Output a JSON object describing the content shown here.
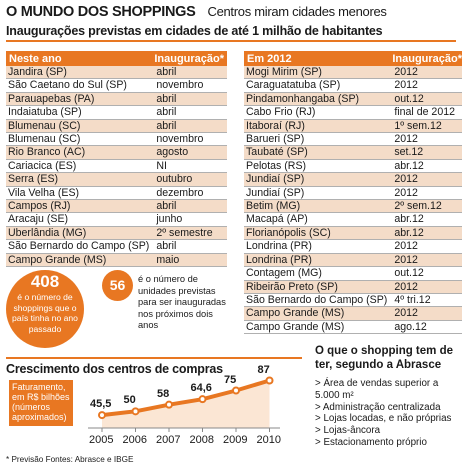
{
  "header": {
    "title": "O MUNDO DOS SHOPPINGS",
    "subtitle": "Centros miram cidades menores"
  },
  "section_title": "Inaugurações previstas em cidades de até 1 milhão de habitantes",
  "left_table": {
    "headers": [
      "Neste ano",
      "Inauguração*"
    ],
    "rows": [
      [
        "Jandira (SP)",
        "abril"
      ],
      [
        "São Caetano do Sul (SP)",
        "novembro"
      ],
      [
        "Parauapebas (PA)",
        "abril"
      ],
      [
        "Indaiatuba (SP)",
        "abril"
      ],
      [
        "Blumenau (SC)",
        "abril"
      ],
      [
        "Blumenau (SC)",
        "novembro"
      ],
      [
        "Rio Branco (AC)",
        "agosto"
      ],
      [
        "Cariacica (ES)",
        "NI"
      ],
      [
        "Serra (ES)",
        "outubro"
      ],
      [
        "Vila Velha (ES)",
        "dezembro"
      ],
      [
        "Campos (RJ)",
        "abril"
      ],
      [
        "Aracaju (SE)",
        "junho"
      ],
      [
        "Uberlândia (MG)",
        "2º semestre"
      ],
      [
        "São Bernardo do Campo (SP)",
        "abril"
      ],
      [
        "Campo Grande (MS)",
        "maio"
      ]
    ]
  },
  "right_table": {
    "headers": [
      "Em 2012",
      "Inauguração*"
    ],
    "rows": [
      [
        "Mogi Mirim (SP)",
        "2012"
      ],
      [
        "Caraguatatuba (SP)",
        "2012"
      ],
      [
        "Pindamonhangaba (SP)",
        "out.12"
      ],
      [
        "Cabo Frio (RJ)",
        "final de 2012"
      ],
      [
        "Itaboraí (RJ)",
        "1º sem.12"
      ],
      [
        "Barueri (SP)",
        "2012"
      ],
      [
        "Taubaté (SP)",
        "set.12"
      ],
      [
        "Pelotas (RS)",
        "abr.12"
      ],
      [
        "Jundiaí (SP)",
        "2012"
      ],
      [
        "Jundiaí (SP)",
        "2012"
      ],
      [
        "Betim (MG)",
        "2º sem.12"
      ],
      [
        "Macapá (AP)",
        "abr.12"
      ],
      [
        "Florianópolis (SC)",
        "abr.12"
      ],
      [
        "Londrina (PR)",
        "2012"
      ],
      [
        "Londrina (PR)",
        "2012"
      ],
      [
        "Contagem (MG)",
        "out.12"
      ],
      [
        "Ribeirão Preto (SP)",
        "2012"
      ],
      [
        "São Bernardo do Campo (SP)",
        "4º tri.12"
      ],
      [
        "Campo Grande (MS)",
        "2012"
      ],
      [
        "Campo Grande (MS)",
        "ago.12"
      ]
    ]
  },
  "big_stat": {
    "number": "408",
    "text": "é o número de shoppings que o país tinha no ano passado"
  },
  "small_stat": {
    "number": "56",
    "text": "é o número de unidades previstas para ser inauguradas nos próximos dois anos"
  },
  "chart_title": "Crescimento dos centros de compras",
  "chart_data": {
    "type": "line",
    "title": "Crescimento dos centros de compras",
    "note": "Faturamento, em R$ bilhões (números aproximados)",
    "x": [
      "2005",
      "2006",
      "2007",
      "2008",
      "2009",
      "2010"
    ],
    "series": [
      {
        "values": [
          45.5,
          50,
          58,
          64.6,
          75,
          87
        ],
        "labels": [
          "45,5",
          "50",
          "58",
          "64,6",
          "75",
          "87"
        ]
      }
    ],
    "colors": {
      "line": "#e87722"
    }
  },
  "right_panel": {
    "title": "O que o shopping tem de ter, segundo a Abrasce",
    "items": [
      "> Área de vendas superior a 5.000 m²",
      "> Administração centralizada",
      "> Lojas locadas, e não próprias",
      "> Lojas-âncora",
      "> Estacionamento próprio"
    ]
  },
  "footer": "* Previsão   Fontes: Abrasce e IBGE",
  "colors": {
    "accent": "#e87722",
    "stripe": "#f4dcc8"
  }
}
